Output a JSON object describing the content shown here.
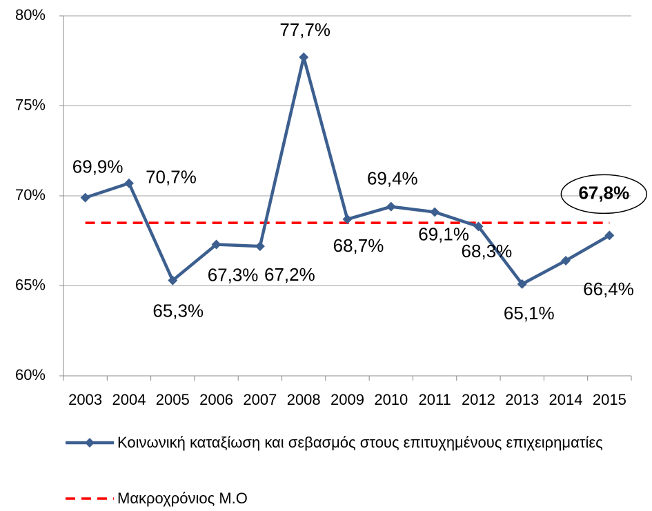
{
  "chart_data": {
    "type": "line",
    "categories": [
      "2003",
      "2004",
      "2005",
      "2006",
      "2007",
      "2008",
      "2009",
      "2010",
      "2011",
      "2012",
      "2013",
      "2014",
      "2015"
    ],
    "series": [
      {
        "name": "Κοινωνική καταξίωση και σεβασμός στους επιτυχημένους επιχειρηματίες",
        "color": "#3c5f8f",
        "values": [
          69.9,
          70.7,
          65.3,
          67.3,
          67.2,
          77.7,
          68.7,
          69.4,
          69.1,
          68.3,
          65.1,
          66.4,
          67.8
        ],
        "value_labels": [
          "69,9%",
          "70,7%",
          "65,3%",
          "67,3%",
          "67,2%",
          "77,7%",
          "68,7%",
          "69,4%",
          "69,1%",
          "68,3%",
          "65,1%",
          "66,4%",
          "67,8%"
        ]
      },
      {
        "name": "Μακροχρόνιος Μ.Ο",
        "color": "#ff0000",
        "dashed": true,
        "values": [
          68.5,
          68.5,
          68.5,
          68.5,
          68.5,
          68.5,
          68.5,
          68.5,
          68.5,
          68.5,
          68.5,
          68.5,
          68.5
        ]
      }
    ],
    "ylim": [
      60,
      80
    ],
    "yticks": [
      {
        "value": 60,
        "label": "60%"
      },
      {
        "value": 65,
        "label": "65%"
      },
      {
        "value": 70,
        "label": "70%"
      },
      {
        "value": 75,
        "label": "75%"
      },
      {
        "value": 80,
        "label": "80%"
      }
    ],
    "grid": true
  }
}
